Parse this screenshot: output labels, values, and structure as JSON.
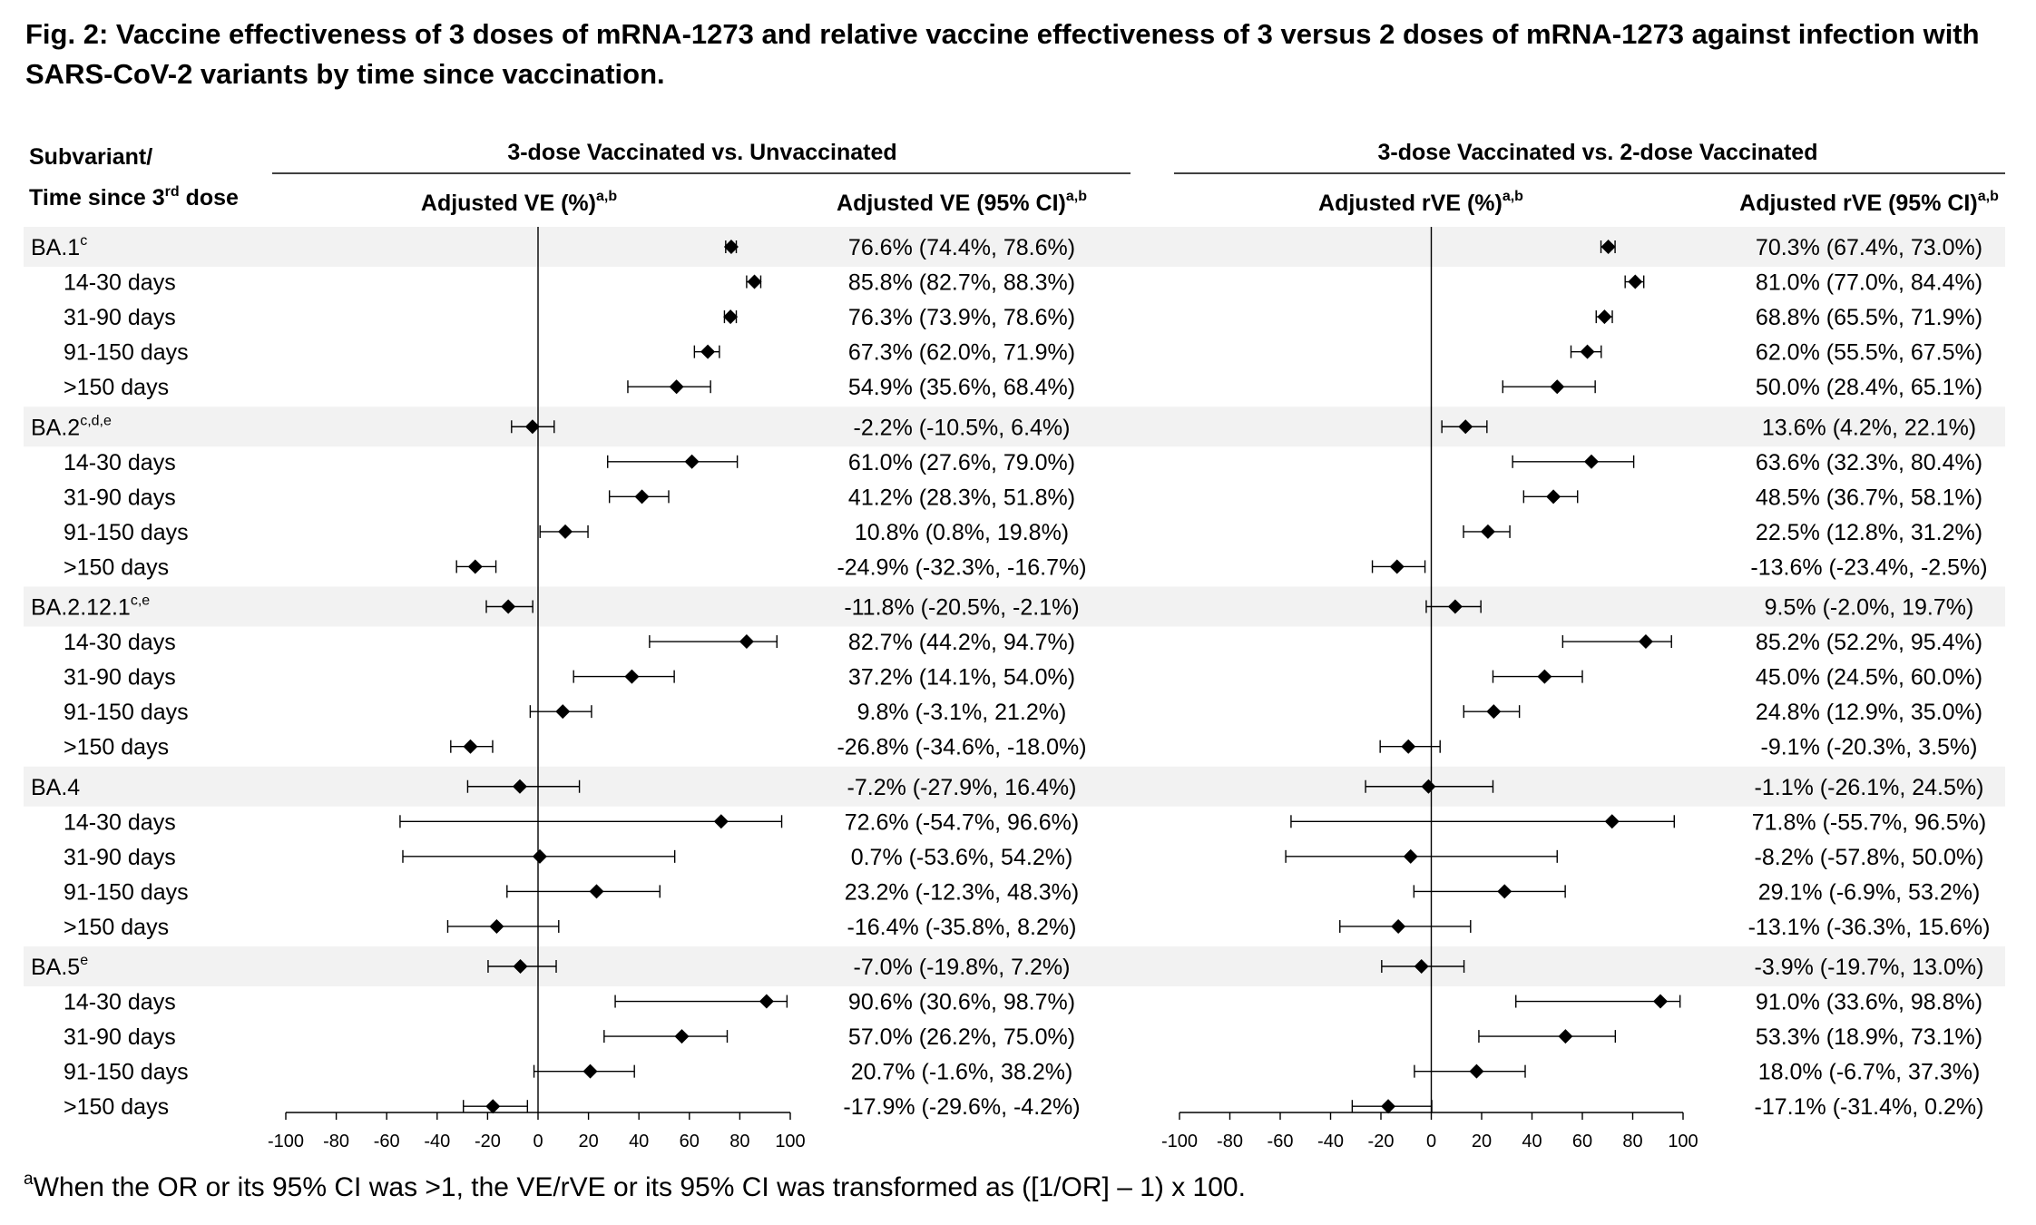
{
  "title": "Fig. 2: Vaccine effectiveness of 3 doses of mRNA-1273 and relative vaccine effectiveness of 3 versus 2 doses of mRNA-1273 against infection with SARS-CoV-2 variants by time since vaccination.",
  "row_header_line1": "Subvariant/",
  "row_header_line2_pre": "Time since 3",
  "row_header_line2_sup": "rd",
  "row_header_line2_post": " dose",
  "footnote_sup": "a",
  "footnote_text": "When the OR or its 95% CI was >1, the VE/rVE or its 95% CI was transformed as ([1/OR] – 1) x 100.",
  "colors": {
    "band": "#f2f2f2",
    "ink": "#000000"
  },
  "chart_data": {
    "type": "forest",
    "rows": [
      {
        "label": "BA.1",
        "sup": "c",
        "kind": "group"
      },
      {
        "label": "14-30 days",
        "kind": "sub"
      },
      {
        "label": "31-90 days",
        "kind": "sub"
      },
      {
        "label": "91-150 days",
        "kind": "sub"
      },
      {
        "label": ">150 days",
        "kind": "sub"
      },
      {
        "label": "BA.2",
        "sup": "c,d,e",
        "kind": "group"
      },
      {
        "label": "14-30 days",
        "kind": "sub"
      },
      {
        "label": "31-90 days",
        "kind": "sub"
      },
      {
        "label": "91-150 days",
        "kind": "sub"
      },
      {
        "label": ">150 days",
        "kind": "sub"
      },
      {
        "label": "BA.2.12.1",
        "sup": "c,e",
        "kind": "group"
      },
      {
        "label": "14-30 days",
        "kind": "sub"
      },
      {
        "label": "31-90 days",
        "kind": "sub"
      },
      {
        "label": "91-150 days",
        "kind": "sub"
      },
      {
        "label": ">150 days",
        "kind": "sub"
      },
      {
        "label": "BA.4",
        "sup": "",
        "kind": "group"
      },
      {
        "label": "14-30 days",
        "kind": "sub"
      },
      {
        "label": "31-90 days",
        "kind": "sub"
      },
      {
        "label": "91-150 days",
        "kind": "sub"
      },
      {
        "label": ">150 days",
        "kind": "sub"
      },
      {
        "label": "BA.5",
        "sup": "e",
        "kind": "group"
      },
      {
        "label": "14-30 days",
        "kind": "sub"
      },
      {
        "label": "31-90 days",
        "kind": "sub"
      },
      {
        "label": "91-150 days",
        "kind": "sub"
      },
      {
        "label": ">150 days",
        "kind": "sub"
      }
    ],
    "panels": [
      {
        "header": "3-dose Vaccinated vs. Unvaccinated",
        "plot_label": "Adjusted VE (%)",
        "plot_label_sup": "a,b",
        "text_label": "Adjusted VE (95% CI)",
        "text_label_sup": "a,b",
        "xlim": [
          -100,
          100
        ],
        "ticks": [
          -100,
          -80,
          -60,
          -40,
          -20,
          0,
          20,
          40,
          60,
          80,
          100
        ],
        "estimates": [
          [
            76.6,
            74.4,
            78.6
          ],
          [
            85.8,
            82.7,
            88.3
          ],
          [
            76.3,
            73.9,
            78.6
          ],
          [
            67.3,
            62.0,
            71.9
          ],
          [
            54.9,
            35.6,
            68.4
          ],
          [
            -2.2,
            -10.5,
            6.4
          ],
          [
            61.0,
            27.6,
            79.0
          ],
          [
            41.2,
            28.3,
            51.8
          ],
          [
            10.8,
            0.8,
            19.8
          ],
          [
            -24.9,
            -32.3,
            -16.7
          ],
          [
            -11.8,
            -20.5,
            -2.1
          ],
          [
            82.7,
            44.2,
            94.7
          ],
          [
            37.2,
            14.1,
            54.0
          ],
          [
            9.8,
            -3.1,
            21.2
          ],
          [
            -26.8,
            -34.6,
            -18.0
          ],
          [
            -7.2,
            -27.9,
            16.4
          ],
          [
            72.6,
            -54.7,
            96.6
          ],
          [
            0.7,
            -53.6,
            54.2
          ],
          [
            23.2,
            -12.3,
            48.3
          ],
          [
            -16.4,
            -35.8,
            8.2
          ],
          [
            -7.0,
            -19.8,
            7.2
          ],
          [
            90.6,
            30.6,
            98.7
          ],
          [
            57.0,
            26.2,
            75.0
          ],
          [
            20.7,
            -1.6,
            38.2
          ],
          [
            -17.9,
            -29.6,
            -4.2
          ]
        ],
        "ci_text": [
          "76.6% (74.4%, 78.6%)",
          "85.8% (82.7%, 88.3%)",
          "76.3% (73.9%, 78.6%)",
          "67.3% (62.0%, 71.9%)",
          "54.9% (35.6%, 68.4%)",
          "-2.2% (-10.5%, 6.4%)",
          "61.0% (27.6%, 79.0%)",
          "41.2% (28.3%, 51.8%)",
          "10.8% (0.8%, 19.8%)",
          "-24.9% (-32.3%, -16.7%)",
          "-11.8% (-20.5%, -2.1%)",
          "82.7% (44.2%, 94.7%)",
          "37.2% (14.1%, 54.0%)",
          "9.8% (-3.1%, 21.2%)",
          "-26.8% (-34.6%, -18.0%)",
          "-7.2% (-27.9%, 16.4%)",
          "72.6% (-54.7%, 96.6%)",
          "0.7% (-53.6%, 54.2%)",
          "23.2% (-12.3%, 48.3%)",
          "-16.4% (-35.8%, 8.2%)",
          "-7.0% (-19.8%, 7.2%)",
          "90.6% (30.6%, 98.7%)",
          "57.0% (26.2%, 75.0%)",
          "20.7% (-1.6%, 38.2%)",
          "-17.9% (-29.6%, -4.2%)"
        ]
      },
      {
        "header": "3-dose Vaccinated vs. 2-dose Vaccinated",
        "plot_label": "Adjusted rVE (%)",
        "plot_label_sup": "a,b",
        "text_label": "Adjusted rVE (95% CI)",
        "text_label_sup": "a,b",
        "xlim": [
          -100,
          100
        ],
        "ticks": [
          -100,
          -80,
          -60,
          -40,
          -20,
          0,
          20,
          40,
          60,
          80,
          100
        ],
        "estimates": [
          [
            70.3,
            67.4,
            73.0
          ],
          [
            81.0,
            77.0,
            84.4
          ],
          [
            68.8,
            65.5,
            71.9
          ],
          [
            62.0,
            55.5,
            67.5
          ],
          [
            50.0,
            28.4,
            65.1
          ],
          [
            13.6,
            4.2,
            22.1
          ],
          [
            63.6,
            32.3,
            80.4
          ],
          [
            48.5,
            36.7,
            58.1
          ],
          [
            22.5,
            12.8,
            31.2
          ],
          [
            -13.6,
            -23.4,
            -2.5
          ],
          [
            9.5,
            -2.0,
            19.7
          ],
          [
            85.2,
            52.2,
            95.4
          ],
          [
            45.0,
            24.5,
            60.0
          ],
          [
            24.8,
            12.9,
            35.0
          ],
          [
            -9.1,
            -20.3,
            3.5
          ],
          [
            -1.1,
            -26.1,
            24.5
          ],
          [
            71.8,
            -55.7,
            96.5
          ],
          [
            -8.2,
            -57.8,
            50.0
          ],
          [
            29.1,
            -6.9,
            53.2
          ],
          [
            -13.1,
            -36.3,
            15.6
          ],
          [
            -3.9,
            -19.7,
            13.0
          ],
          [
            91.0,
            33.6,
            98.8
          ],
          [
            53.3,
            18.9,
            73.1
          ],
          [
            18.0,
            -6.7,
            37.3
          ],
          [
            -17.1,
            -31.4,
            0.2
          ]
        ],
        "ci_text": [
          "70.3% (67.4%, 73.0%)",
          "81.0% (77.0%, 84.4%)",
          "68.8% (65.5%, 71.9%)",
          "62.0% (55.5%, 67.5%)",
          "50.0% (28.4%, 65.1%)",
          "13.6% (4.2%, 22.1%)",
          "63.6% (32.3%, 80.4%)",
          "48.5% (36.7%, 58.1%)",
          "22.5% (12.8%, 31.2%)",
          "-13.6% (-23.4%, -2.5%)",
          "9.5% (-2.0%, 19.7%)",
          "85.2% (52.2%, 95.4%)",
          "45.0% (24.5%, 60.0%)",
          "24.8% (12.9%, 35.0%)",
          "-9.1% (-20.3%, 3.5%)",
          "-1.1% (-26.1%, 24.5%)",
          "71.8% (-55.7%, 96.5%)",
          "-8.2% (-57.8%, 50.0%)",
          "29.1% (-6.9%, 53.2%)",
          "-13.1% (-36.3%, 15.6%)",
          "-3.9% (-19.7%, 13.0%)",
          "91.0% (33.6%, 98.8%)",
          "53.3% (18.9%, 73.1%)",
          "18.0% (-6.7%, 37.3%)",
          "-17.1% (-31.4%, 0.2%)"
        ]
      }
    ]
  }
}
